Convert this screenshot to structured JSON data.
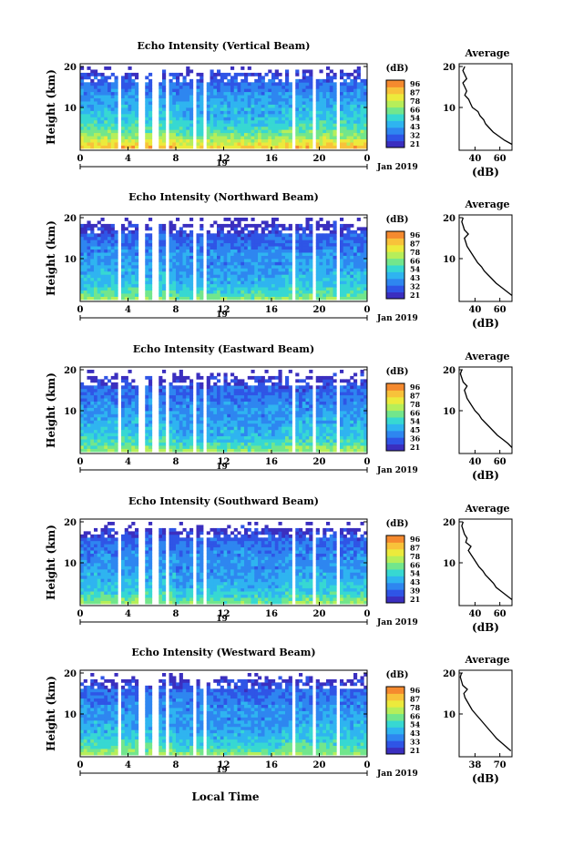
{
  "figure": {
    "xlabel": "Local Time",
    "date_label": "Jan 2019",
    "day_label": "19"
  },
  "colors": {
    "colormap": [
      "#3b2fbf",
      "#2f55e6",
      "#2e86f0",
      "#2fb4f0",
      "#37d8d2",
      "#72e68c",
      "#b6ee5a",
      "#ecea3c",
      "#f8c23a",
      "#f58a2f",
      "#e6452a"
    ],
    "line": "#000000",
    "gap": "#ffffff"
  },
  "gaps_hours": [
    [
      3.05,
      3.55
    ],
    [
      5.0,
      5.5
    ],
    [
      6.0,
      6.6
    ],
    [
      7.05,
      7.4
    ],
    [
      9.3,
      9.75
    ],
    [
      10.3,
      10.65
    ],
    [
      17.6,
      17.95
    ],
    [
      19.3,
      19.65
    ],
    [
      21.5,
      21.85
    ]
  ],
  "chart_data": [
    {
      "type": "heatmap",
      "title": "Echo Intensity (Vertical Beam)",
      "ylabel": "Height (km)",
      "xlim": [
        0,
        24
      ],
      "ylim": [
        0,
        20
      ],
      "xticks": [
        "0",
        "4",
        "8",
        "12",
        "16",
        "20",
        "0"
      ],
      "yticks": [
        "10",
        "20"
      ],
      "colorbar_label": "(dB)",
      "colorbar_ticks": [
        "96",
        "87",
        "78",
        "66",
        "54",
        "43",
        "32",
        "21"
      ],
      "level_profile": [
        0.88,
        0.7,
        0.55,
        0.46,
        0.4,
        0.35,
        0.3,
        0.25,
        0.2,
        0.1,
        0.0
      ],
      "avg_profile": {
        "title": "Average",
        "xlabel": "(dB)",
        "xlim": [
          32,
          60
        ],
        "xticks": [
          "40",
          "60"
        ],
        "yticks": [
          "10",
          "20"
        ],
        "height_km": [
          1,
          2,
          3,
          4,
          5,
          6,
          7,
          8,
          9,
          10,
          11,
          12,
          13,
          14,
          15,
          16,
          17,
          18,
          19,
          20
        ],
        "value_db": [
          60,
          56,
          53,
          50,
          48,
          46,
          45,
          43,
          42,
          39,
          38,
          37,
          35,
          36,
          35,
          34,
          36,
          35,
          34,
          35
        ]
      }
    },
    {
      "type": "heatmap",
      "title": "Echo Intensity (Northward Beam)",
      "ylabel": "Height (km)",
      "xlim": [
        0,
        24
      ],
      "ylim": [
        0,
        20
      ],
      "xticks": [
        "0",
        "4",
        "8",
        "12",
        "16",
        "20",
        "0"
      ],
      "yticks": [
        "10",
        "20"
      ],
      "colorbar_label": "(dB)",
      "colorbar_ticks": [
        "96",
        "87",
        "78",
        "66",
        "54",
        "43",
        "32",
        "21"
      ],
      "level_profile": [
        0.62,
        0.48,
        0.4,
        0.36,
        0.32,
        0.28,
        0.25,
        0.2,
        0.15,
        0.05,
        0.0
      ],
      "avg_profile": {
        "title": "Average",
        "xlabel": "(dB)",
        "xlim": [
          30,
          70
        ],
        "xticks": [
          "40",
          "60"
        ],
        "yticks": [
          "10",
          "20"
        ],
        "height_km": [
          1,
          2,
          3,
          4,
          5,
          6,
          7,
          8,
          9,
          10,
          11,
          12,
          13,
          14,
          15,
          16,
          17,
          18,
          19,
          20
        ],
        "value_db": [
          70,
          66,
          62,
          58,
          55,
          52,
          49,
          47,
          44,
          42,
          40,
          38,
          36,
          35,
          34,
          37,
          34,
          33,
          32,
          33
        ]
      }
    },
    {
      "type": "heatmap",
      "title": "Echo Intensity (Eastward Beam)",
      "ylabel": "Height (km)",
      "xlim": [
        0,
        24
      ],
      "ylim": [
        0,
        20
      ],
      "xticks": [
        "0",
        "4",
        "8",
        "12",
        "16",
        "20",
        "0"
      ],
      "yticks": [
        "10",
        "20"
      ],
      "colorbar_label": "(dB)",
      "colorbar_ticks": [
        "96",
        "87",
        "78",
        "66",
        "54",
        "45",
        "36",
        "21"
      ],
      "level_profile": [
        0.64,
        0.5,
        0.41,
        0.37,
        0.33,
        0.28,
        0.25,
        0.2,
        0.15,
        0.05,
        0.0
      ],
      "avg_profile": {
        "title": "Average",
        "xlabel": "(dB)",
        "xlim": [
          30,
          70
        ],
        "xticks": [
          "40",
          "60"
        ],
        "yticks": [
          "10",
          "20"
        ],
        "height_km": [
          1,
          2,
          3,
          4,
          5,
          6,
          7,
          8,
          9,
          10,
          11,
          12,
          13,
          14,
          15,
          16,
          17,
          18,
          19,
          20
        ],
        "value_db": [
          70,
          67,
          63,
          59,
          56,
          53,
          50,
          47,
          45,
          42,
          40,
          38,
          36,
          35,
          34,
          36,
          33,
          32,
          31,
          32
        ]
      }
    },
    {
      "type": "heatmap",
      "title": "Echo Intensity (Southward Beam)",
      "ylabel": "Height (km)",
      "xlim": [
        0,
        24
      ],
      "ylim": [
        0,
        20
      ],
      "xticks": [
        "0",
        "4",
        "8",
        "12",
        "16",
        "20",
        "0"
      ],
      "yticks": [
        "10",
        "20"
      ],
      "colorbar_label": "(dB)",
      "colorbar_ticks": [
        "96",
        "87",
        "78",
        "66",
        "54",
        "43",
        "39",
        "21"
      ],
      "level_profile": [
        0.62,
        0.48,
        0.4,
        0.36,
        0.32,
        0.28,
        0.25,
        0.22,
        0.16,
        0.06,
        0.0
      ],
      "avg_profile": {
        "title": "Average",
        "xlabel": "(dB)",
        "xlim": [
          30,
          70
        ],
        "xticks": [
          "40",
          "60"
        ],
        "yticks": [
          "10",
          "20"
        ],
        "height_km": [
          1,
          2,
          3,
          4,
          5,
          6,
          7,
          8,
          9,
          10,
          11,
          12,
          13,
          14,
          15,
          16,
          17,
          18,
          19,
          20
        ],
        "value_db": [
          70,
          66,
          62,
          58,
          56,
          53,
          50,
          48,
          45,
          43,
          41,
          39,
          37,
          39,
          35,
          36,
          34,
          33,
          32,
          33
        ]
      }
    },
    {
      "type": "heatmap",
      "title": "Echo Intensity (Westward Beam)",
      "ylabel": "Height (km)",
      "xlim": [
        0,
        24
      ],
      "ylim": [
        0,
        20
      ],
      "xticks": [
        "0",
        "4",
        "8",
        "12",
        "16",
        "20",
        "0"
      ],
      "yticks": [
        "10",
        "20"
      ],
      "colorbar_label": "(dB)",
      "colorbar_ticks": [
        "96",
        "87",
        "78",
        "66",
        "54",
        "43",
        "33",
        "21"
      ],
      "level_profile": [
        0.64,
        0.5,
        0.42,
        0.37,
        0.33,
        0.29,
        0.26,
        0.22,
        0.17,
        0.07,
        0.0
      ],
      "avg_profile": {
        "title": "Average",
        "xlabel": "(dB)",
        "xlim": [
          30,
          75
        ],
        "xticks": [
          "38",
          "70"
        ],
        "yticks": [
          "10",
          "20"
        ],
        "height_km": [
          1,
          2,
          3,
          4,
          5,
          6,
          7,
          8,
          9,
          10,
          11,
          12,
          13,
          14,
          15,
          16,
          17,
          18,
          19,
          20
        ],
        "value_db": [
          74,
          70,
          66,
          62,
          59,
          56,
          53,
          50,
          47,
          44,
          41,
          39,
          37,
          35,
          34,
          37,
          33,
          32,
          31,
          32
        ]
      }
    }
  ]
}
